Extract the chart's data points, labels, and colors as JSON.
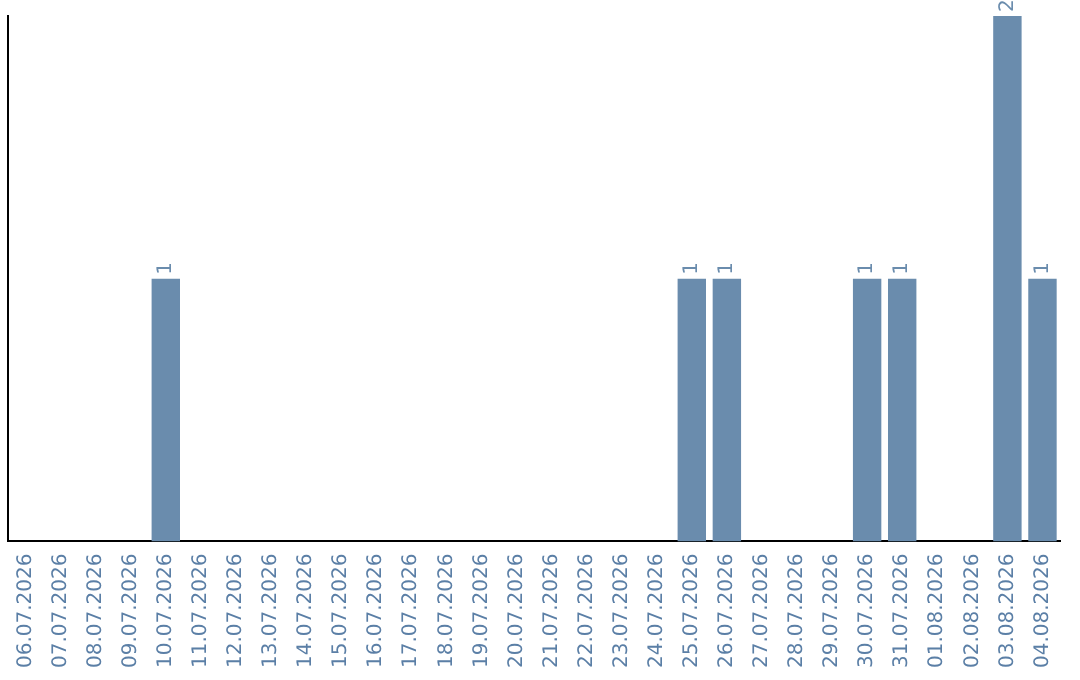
{
  "chart_data": {
    "type": "bar",
    "categories": [
      "06.07.2026",
      "07.07.2026",
      "08.07.2026",
      "09.07.2026",
      "10.07.2026",
      "11.07.2026",
      "12.07.2026",
      "13.07.2026",
      "14.07.2026",
      "15.07.2026",
      "16.07.2026",
      "17.07.2026",
      "18.07.2026",
      "19.07.2026",
      "20.07.2026",
      "21.07.2026",
      "22.07.2026",
      "23.07.2026",
      "24.07.2026",
      "25.07.2026",
      "26.07.2026",
      "27.07.2026",
      "28.07.2026",
      "29.07.2026",
      "30.07.2026",
      "31.07.2026",
      "01.08.2026",
      "02.08.2026",
      "03.08.2026",
      "04.08.2026"
    ],
    "values": [
      0,
      0,
      0,
      0,
      1,
      0,
      0,
      0,
      0,
      0,
      0,
      0,
      0,
      0,
      0,
      0,
      0,
      0,
      0,
      1,
      1,
      0,
      0,
      0,
      1,
      1,
      0,
      0,
      2,
      1
    ],
    "value_labels": [
      null,
      null,
      null,
      null,
      "1",
      null,
      null,
      null,
      null,
      null,
      null,
      null,
      null,
      null,
      null,
      null,
      null,
      null,
      null,
      "1",
      "1",
      null,
      null,
      null,
      "1",
      "1",
      null,
      null,
      "2",
      "1"
    ],
    "color": "#6a8cad",
    "grid": false,
    "legend": false,
    "tick_labels": "x"
  }
}
